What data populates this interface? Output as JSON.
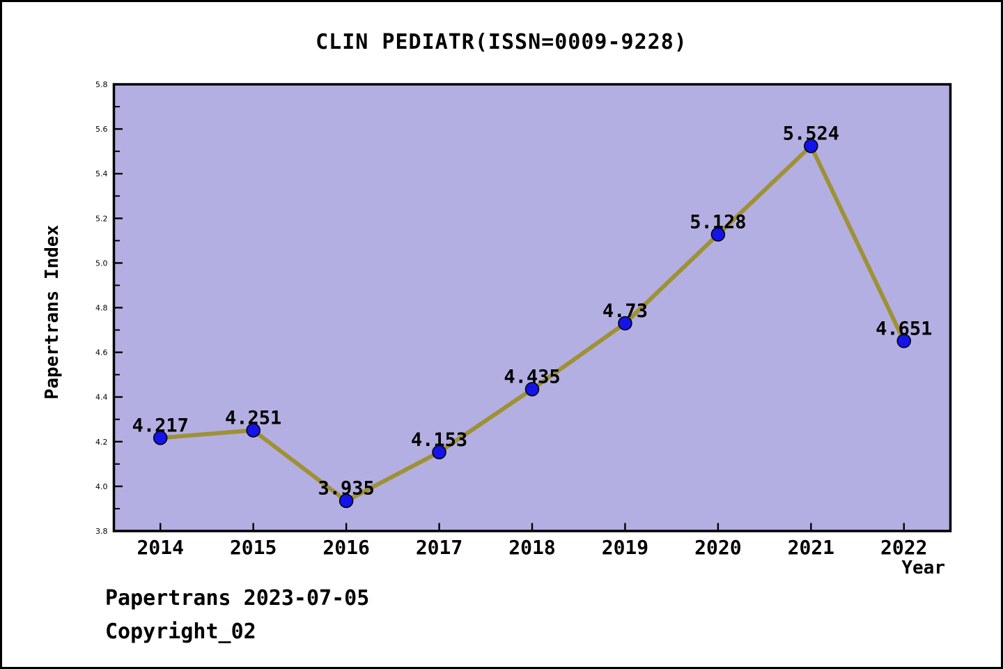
{
  "window": {
    "title": "CLIN PEDIATR(ISSN=0009-9228)"
  },
  "chart_data": {
    "type": "line",
    "title": "CLIN PEDIATR(ISSN=0009-9228)",
    "xlabel": "Year",
    "ylabel": "Papertrans Index",
    "x": [
      2014,
      2015,
      2016,
      2017,
      2018,
      2019,
      2020,
      2021,
      2022
    ],
    "x_tick_labels": [
      "2014",
      "2015",
      "2016",
      "2017",
      "2018",
      "2019",
      "2020",
      "2021",
      "2022"
    ],
    "series": [
      {
        "name": "Papertrans Index",
        "values": [
          4.217,
          4.251,
          3.935,
          4.153,
          4.435,
          4.73,
          5.128,
          5.524,
          4.651
        ],
        "point_labels": [
          "4.217",
          "4.251",
          "3.935",
          "4.153",
          "4.435",
          "4.73",
          "5.128",
          "5.524",
          "4.651"
        ]
      }
    ],
    "xlim": [
      2013.5,
      2022.5
    ],
    "ylim": [
      3.8,
      5.8
    ],
    "y_tick_labels": [
      "3.8",
      "4.0",
      "4.2",
      "4.4",
      "4.6",
      "4.8",
      "5.0",
      "5.2",
      "5.4",
      "5.6",
      "5.8"
    ],
    "y_major_step": 0.2,
    "y_minor_step": 0.1,
    "grid": "off",
    "legend": "none",
    "colors": {
      "plot_bg": "#b4afe2",
      "line": "#9e9136",
      "marker": "#1414e8",
      "marker_edge": "#000000",
      "axis": "#000000",
      "text": "#000000"
    }
  },
  "footer": {
    "line1": "Papertrans 2023-07-05",
    "line2": "Copyright_02"
  }
}
